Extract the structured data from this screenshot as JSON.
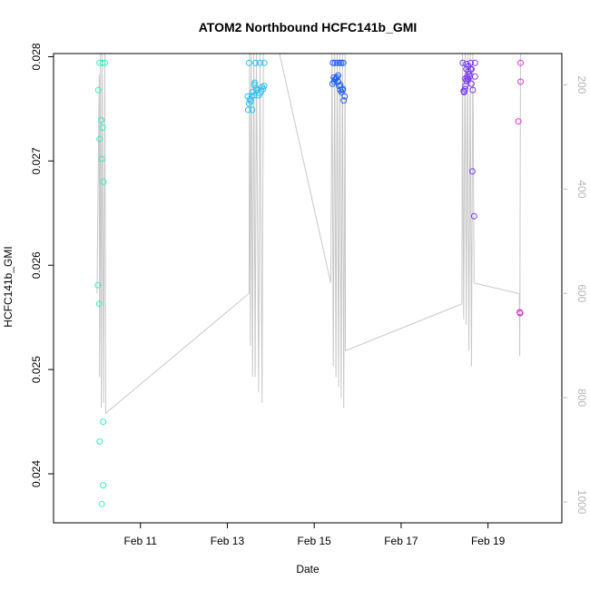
{
  "chart_data": {
    "type": "scatter",
    "title": "ATOM2 Northbound HCFC141b_GMI",
    "xlabel": "Date",
    "ylabel": "HCFC141b_GMI",
    "x_ticks": [
      "Feb 11",
      "Feb 13",
      "Feb 15",
      "Feb 17",
      "Feb 19"
    ],
    "x_tick_days": [
      11,
      13,
      15,
      17,
      19
    ],
    "xlim_days": [
      9.0,
      20.7
    ],
    "ylim": [
      0.02353,
      0.02803
    ],
    "y_ticks": [
      0.024,
      0.025,
      0.026,
      0.027,
      0.028
    ],
    "y_tick_labels": [
      "0.024",
      "0.025",
      "0.026",
      "0.027",
      "0.028"
    ],
    "y2_lim": [
      1040,
      140
    ],
    "y2_ticks": [
      200,
      400,
      600,
      800,
      1000
    ],
    "y2_tick_labels": [
      "200",
      "400",
      "600",
      "800",
      "1000"
    ],
    "colors": {
      "axis": "#000000",
      "secondary_axis": "#bebebe",
      "trace": "#c8c8c8"
    },
    "series": [
      {
        "color": "#33f0c0",
        "points": [
          [
            10.06,
            0.02794
          ],
          [
            10.13,
            0.02794
          ],
          [
            10.18,
            0.02794
          ],
          [
            10.03,
            0.02768
          ],
          [
            10.1,
            0.02739
          ],
          [
            10.13,
            0.02732
          ],
          [
            10.06,
            0.02721
          ],
          [
            10.11,
            0.02702
          ],
          [
            10.15,
            0.0268
          ],
          [
            10.02,
            0.02581
          ],
          [
            10.05,
            0.02563
          ],
          [
            10.14,
            0.0245
          ],
          [
            10.06,
            0.02431
          ],
          [
            10.14,
            0.02389
          ],
          [
            10.11,
            0.02371
          ]
        ]
      },
      {
        "color": "#33c0f0",
        "points": [
          [
            13.5,
            0.02794
          ],
          [
            13.65,
            0.02794
          ],
          [
            13.75,
            0.02794
          ],
          [
            13.85,
            0.02794
          ],
          [
            13.47,
            0.02762
          ],
          [
            13.52,
            0.02759
          ],
          [
            13.58,
            0.02766
          ],
          [
            13.62,
            0.02773
          ],
          [
            13.66,
            0.0277
          ],
          [
            13.7,
            0.02768
          ],
          [
            13.75,
            0.02765
          ],
          [
            13.8,
            0.02771
          ],
          [
            13.85,
            0.02772
          ],
          [
            13.5,
            0.02755
          ],
          [
            13.56,
            0.02762
          ],
          [
            13.62,
            0.02763
          ],
          [
            13.67,
            0.02768
          ],
          [
            13.72,
            0.02763
          ],
          [
            13.78,
            0.02767
          ],
          [
            13.82,
            0.02769
          ],
          [
            13.48,
            0.02749
          ],
          [
            13.57,
            0.02749
          ],
          [
            13.54,
            0.02757
          ],
          [
            13.63,
            0.02775
          ]
        ]
      },
      {
        "color": "#2060f0",
        "points": [
          [
            15.43,
            0.02794
          ],
          [
            15.48,
            0.02794
          ],
          [
            15.53,
            0.02794
          ],
          [
            15.58,
            0.02794
          ],
          [
            15.62,
            0.02794
          ],
          [
            15.67,
            0.02794
          ],
          [
            15.42,
            0.02774
          ],
          [
            15.46,
            0.02776
          ],
          [
            15.5,
            0.02779
          ],
          [
            15.55,
            0.02782
          ],
          [
            15.6,
            0.02773
          ],
          [
            15.65,
            0.02768
          ],
          [
            15.7,
            0.02762
          ],
          [
            15.47,
            0.02778
          ],
          [
            15.52,
            0.0278
          ],
          [
            15.57,
            0.02772
          ],
          [
            15.63,
            0.02766
          ],
          [
            15.68,
            0.02758
          ],
          [
            15.45,
            0.0278
          ],
          [
            15.6,
            0.02768
          ],
          [
            15.55,
            0.02776
          ],
          [
            15.66,
            0.02769
          ]
        ]
      },
      {
        "color": "#7a3af0",
        "points": [
          [
            18.42,
            0.02794
          ],
          [
            18.5,
            0.02793
          ],
          [
            18.55,
            0.02791
          ],
          [
            18.6,
            0.02794
          ],
          [
            18.7,
            0.02794
          ],
          [
            18.45,
            0.02766
          ],
          [
            18.48,
            0.02772
          ],
          [
            18.5,
            0.02777
          ],
          [
            18.52,
            0.02781
          ],
          [
            18.55,
            0.02786
          ],
          [
            18.58,
            0.02781
          ],
          [
            18.62,
            0.02774
          ],
          [
            18.65,
            0.02768
          ],
          [
            18.7,
            0.02781
          ],
          [
            18.44,
            0.02767
          ],
          [
            18.47,
            0.02769
          ],
          [
            18.53,
            0.02779
          ],
          [
            18.57,
            0.02783
          ],
          [
            18.6,
            0.02788
          ],
          [
            18.62,
            0.02788
          ],
          [
            18.5,
            0.02788
          ],
          [
            18.55,
            0.02778
          ],
          [
            18.48,
            0.02779
          ],
          [
            18.64,
            0.0269
          ],
          [
            18.68,
            0.02647
          ]
        ]
      },
      {
        "color": "#e030e0",
        "points": [
          [
            19.75,
            0.02794
          ],
          [
            19.75,
            0.02776
          ],
          [
            19.7,
            0.02738
          ],
          [
            19.73,
            0.02555
          ],
          [
            19.74,
            0.02554
          ]
        ]
      }
    ],
    "trace_y2": [
      [
        10.0,
        600
      ],
      [
        10.05,
        180
      ],
      [
        10.06,
        760
      ],
      [
        10.08,
        140
      ],
      [
        10.1,
        820
      ],
      [
        10.12,
        140
      ],
      [
        10.15,
        810
      ],
      [
        10.18,
        140
      ],
      [
        10.2,
        830
      ],
      [
        13.5,
        600
      ],
      [
        13.51,
        140
      ],
      [
        13.53,
        700
      ],
      [
        13.55,
        140
      ],
      [
        13.58,
        760
      ],
      [
        13.61,
        140
      ],
      [
        13.64,
        760
      ],
      [
        13.67,
        140
      ],
      [
        13.72,
        790
      ],
      [
        13.75,
        140
      ],
      [
        13.8,
        810
      ],
      [
        13.83,
        140
      ],
      [
        13.88,
        140
      ],
      [
        14.2,
        120
      ],
      [
        15.38,
        580
      ],
      [
        15.41,
        140
      ],
      [
        15.44,
        740
      ],
      [
        15.47,
        140
      ],
      [
        15.5,
        760
      ],
      [
        15.53,
        140
      ],
      [
        15.56,
        780
      ],
      [
        15.59,
        140
      ],
      [
        15.62,
        800
      ],
      [
        15.65,
        140
      ],
      [
        15.68,
        820
      ],
      [
        15.71,
        140
      ],
      [
        15.72,
        710
      ],
      [
        18.4,
        620
      ],
      [
        18.41,
        140
      ],
      [
        18.44,
        650
      ],
      [
        18.47,
        140
      ],
      [
        18.5,
        660
      ],
      [
        18.53,
        140
      ],
      [
        18.56,
        710
      ],
      [
        18.59,
        140
      ],
      [
        18.62,
        740
      ],
      [
        18.65,
        140
      ],
      [
        18.68,
        580
      ],
      [
        19.7,
        600
      ],
      [
        19.72,
        600
      ],
      [
        19.73,
        720
      ],
      [
        19.75,
        140
      ]
    ]
  }
}
